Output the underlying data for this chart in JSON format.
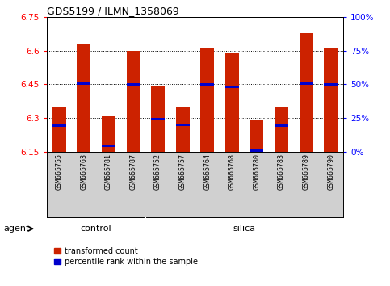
{
  "title": "GDS5199 / ILMN_1358069",
  "samples": [
    "GSM665755",
    "GSM665763",
    "GSM665781",
    "GSM665787",
    "GSM665752",
    "GSM665757",
    "GSM665764",
    "GSM665768",
    "GSM665780",
    "GSM665783",
    "GSM665789",
    "GSM665790"
  ],
  "groups": [
    "control",
    "control",
    "control",
    "control",
    "silica",
    "silica",
    "silica",
    "silica",
    "silica",
    "silica",
    "silica",
    "silica"
  ],
  "transformed_count": [
    6.35,
    6.63,
    6.31,
    6.6,
    6.44,
    6.35,
    6.61,
    6.59,
    6.29,
    6.35,
    6.68,
    6.61
  ],
  "percentile_rank": [
    6.265,
    6.455,
    6.175,
    6.45,
    6.293,
    6.27,
    6.45,
    6.44,
    6.153,
    6.265,
    6.455,
    6.45
  ],
  "ymin": 6.15,
  "ymax": 6.75,
  "yticks_left": [
    6.15,
    6.3,
    6.45,
    6.6,
    6.75
  ],
  "yticks_right_vals": [
    0,
    25,
    50,
    75,
    100
  ],
  "yticks_right_positions": [
    6.15,
    6.3,
    6.45,
    6.6,
    6.75
  ],
  "bar_color": "#cc2200",
  "percentile_color": "#0000cc",
  "control_indices": [
    0,
    1,
    2,
    3
  ],
  "silica_indices": [
    4,
    5,
    6,
    7,
    8,
    9,
    10,
    11
  ],
  "agent_label": "agent",
  "legend_items": [
    "transformed count",
    "percentile rank within the sample"
  ]
}
